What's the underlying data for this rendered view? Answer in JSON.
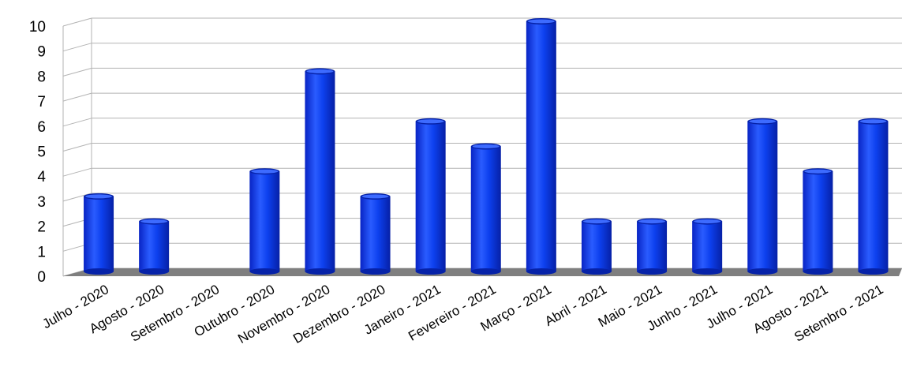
{
  "chart_data": {
    "type": "bar",
    "title": "",
    "xlabel": "",
    "ylabel": "",
    "ylim": [
      0,
      10
    ],
    "yticks": [
      "0",
      "1",
      "2",
      "3",
      "4",
      "5",
      "6",
      "7",
      "8",
      "9",
      "10"
    ],
    "grid": true,
    "legend": "none",
    "categories": [
      "Julho - 2020",
      "Agosto - 2020",
      "Setembro - 2020",
      "Outubro - 2020",
      "Novembro - 2020",
      "Dezembro - 2020",
      "Janeiro - 2021",
      "Fevereiro - 2021",
      "Março - 2021",
      "Abril - 2021",
      "Maio - 2021",
      "Junho - 2021",
      "Julho - 2021",
      "Agosto - 2021",
      "Setembro - 2021"
    ],
    "values": [
      3,
      2,
      0,
      4,
      8,
      3,
      6,
      5,
      10,
      2,
      2,
      2,
      6,
      4,
      6
    ],
    "colors": {
      "bar": "#0a3cf0",
      "bar_highlight": "#3d6bff",
      "bar_shadow": "#0622a8",
      "floor": "#7f7f7f",
      "grid": "#b3b3b3"
    }
  }
}
